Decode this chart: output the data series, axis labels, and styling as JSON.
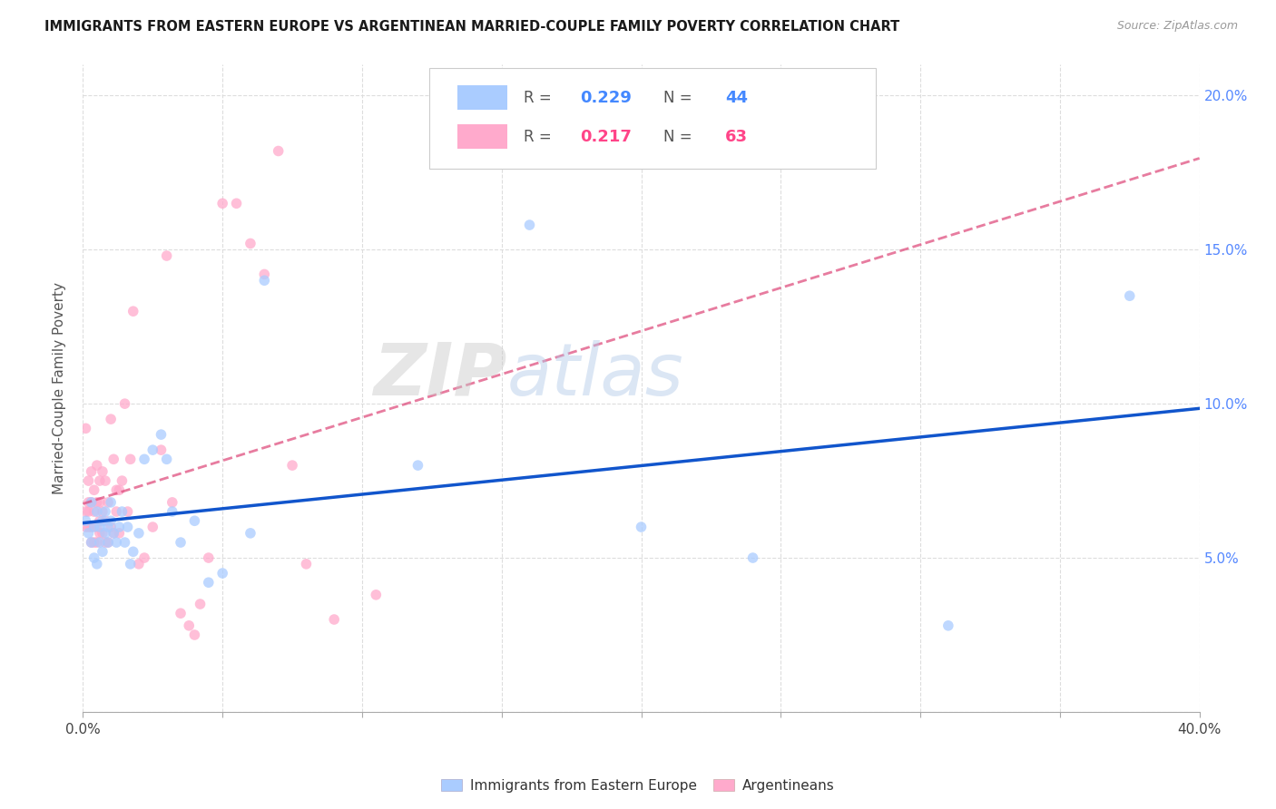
{
  "title": "IMMIGRANTS FROM EASTERN EUROPE VS ARGENTINEAN MARRIED-COUPLE FAMILY POVERTY CORRELATION CHART",
  "source": "Source: ZipAtlas.com",
  "ylabel": "Married-Couple Family Poverty",
  "xlim": [
    0.0,
    0.4
  ],
  "ylim": [
    0.0,
    0.21
  ],
  "color_blue": "#aaccff",
  "color_pink": "#ffaacc",
  "color_trendline_blue": "#1155cc",
  "color_trendline_pink": "#dd4477",
  "watermark_zip": "ZIP",
  "watermark_atlas": "atlas",
  "r1": "0.229",
  "n1": "44",
  "r2": "0.217",
  "n2": "63",
  "label_blue": "Immigrants from Eastern Europe",
  "label_pink": "Argentineans",
  "blue_x": [
    0.001,
    0.002,
    0.003,
    0.003,
    0.004,
    0.004,
    0.005,
    0.005,
    0.006,
    0.006,
    0.007,
    0.007,
    0.008,
    0.008,
    0.009,
    0.009,
    0.01,
    0.01,
    0.011,
    0.012,
    0.013,
    0.014,
    0.015,
    0.016,
    0.017,
    0.018,
    0.02,
    0.022,
    0.025,
    0.028,
    0.03,
    0.032,
    0.035,
    0.04,
    0.045,
    0.05,
    0.06,
    0.065,
    0.12,
    0.16,
    0.2,
    0.24,
    0.31,
    0.375
  ],
  "blue_y": [
    0.062,
    0.058,
    0.055,
    0.068,
    0.06,
    0.05,
    0.065,
    0.048,
    0.06,
    0.055,
    0.062,
    0.052,
    0.058,
    0.065,
    0.055,
    0.06,
    0.062,
    0.068,
    0.058,
    0.055,
    0.06,
    0.065,
    0.055,
    0.06,
    0.048,
    0.052,
    0.058,
    0.082,
    0.085,
    0.09,
    0.082,
    0.065,
    0.055,
    0.062,
    0.042,
    0.045,
    0.058,
    0.14,
    0.08,
    0.158,
    0.06,
    0.05,
    0.028,
    0.135
  ],
  "pink_x": [
    0.001,
    0.001,
    0.001,
    0.002,
    0.002,
    0.002,
    0.002,
    0.003,
    0.003,
    0.003,
    0.003,
    0.004,
    0.004,
    0.004,
    0.005,
    0.005,
    0.005,
    0.005,
    0.006,
    0.006,
    0.006,
    0.006,
    0.007,
    0.007,
    0.007,
    0.008,
    0.008,
    0.008,
    0.009,
    0.009,
    0.01,
    0.01,
    0.011,
    0.011,
    0.012,
    0.012,
    0.013,
    0.013,
    0.014,
    0.015,
    0.016,
    0.017,
    0.018,
    0.02,
    0.022,
    0.025,
    0.028,
    0.03,
    0.032,
    0.035,
    0.038,
    0.04,
    0.042,
    0.045,
    0.05,
    0.055,
    0.06,
    0.065,
    0.07,
    0.075,
    0.08,
    0.09,
    0.105
  ],
  "pink_y": [
    0.06,
    0.065,
    0.092,
    0.06,
    0.065,
    0.068,
    0.075,
    0.055,
    0.06,
    0.068,
    0.078,
    0.055,
    0.065,
    0.072,
    0.055,
    0.06,
    0.068,
    0.08,
    0.058,
    0.062,
    0.068,
    0.075,
    0.058,
    0.065,
    0.078,
    0.055,
    0.062,
    0.075,
    0.055,
    0.068,
    0.06,
    0.095,
    0.058,
    0.082,
    0.065,
    0.072,
    0.058,
    0.072,
    0.075,
    0.1,
    0.065,
    0.082,
    0.13,
    0.048,
    0.05,
    0.06,
    0.085,
    0.148,
    0.068,
    0.032,
    0.028,
    0.025,
    0.035,
    0.05,
    0.165,
    0.165,
    0.152,
    0.142,
    0.182,
    0.08,
    0.048,
    0.03,
    0.038
  ]
}
